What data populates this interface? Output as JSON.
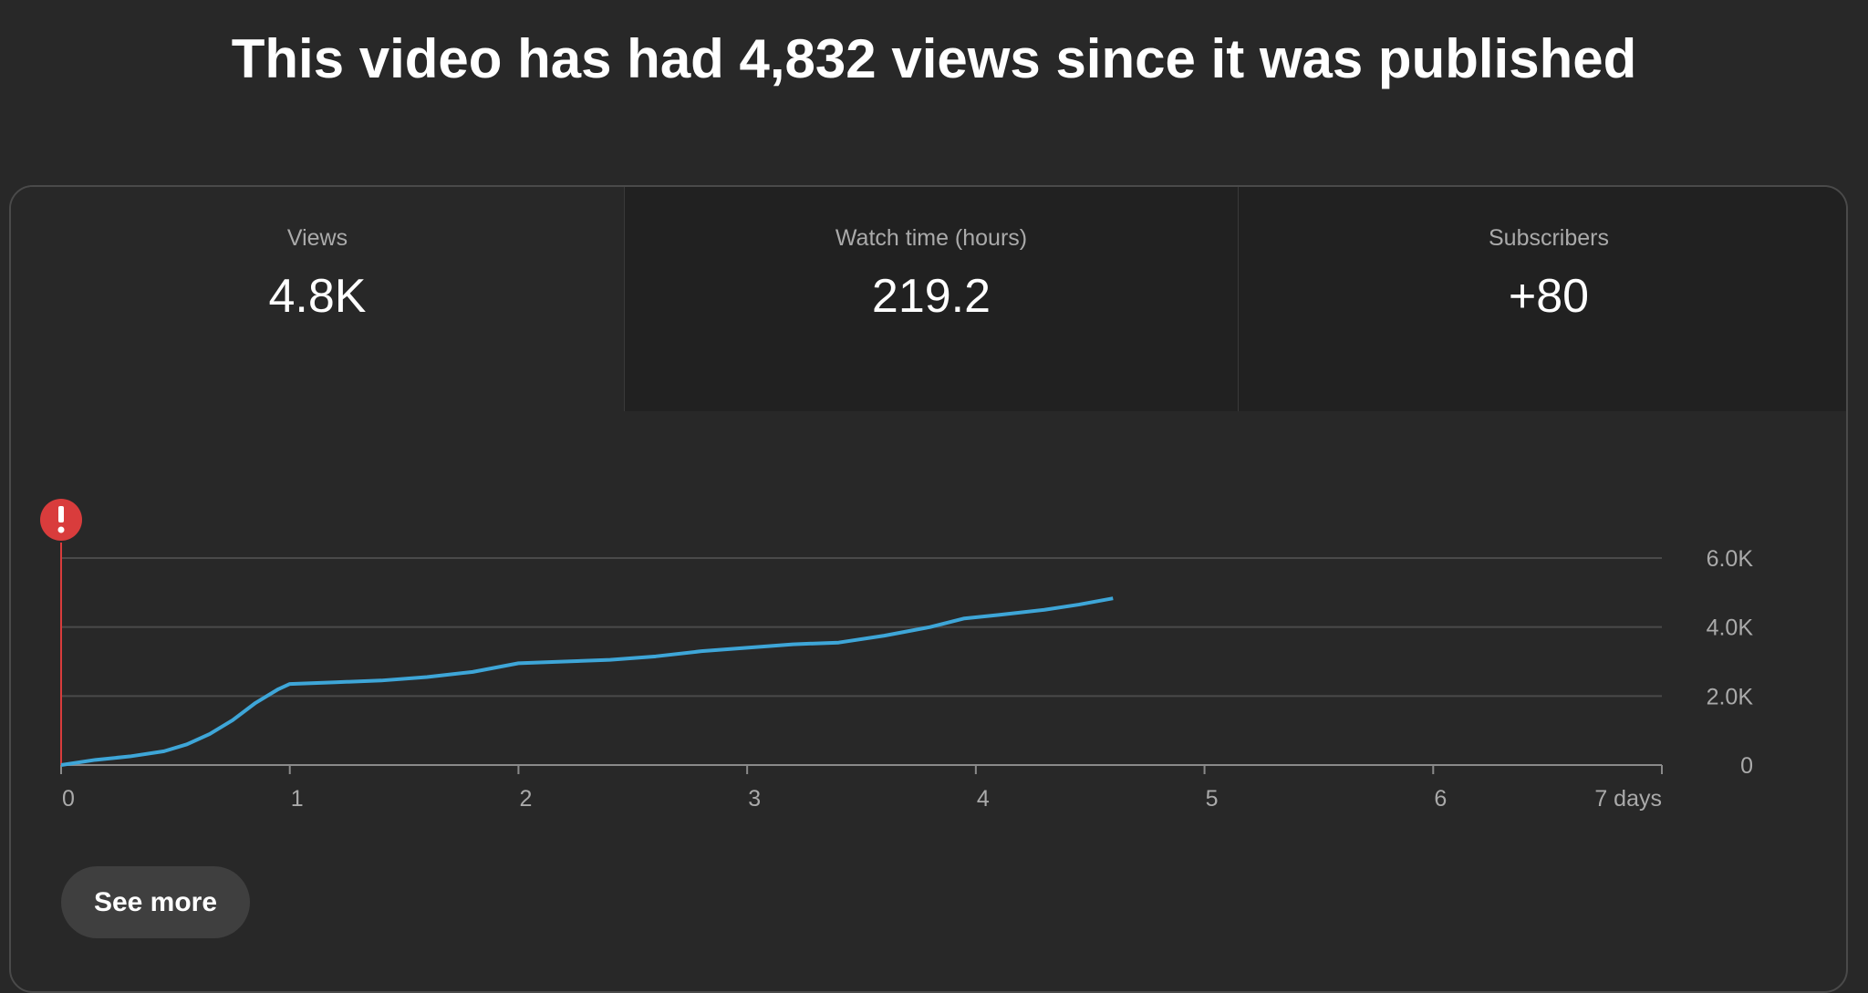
{
  "header": {
    "title": "This video has had 4,832 views since it was published"
  },
  "stats": [
    {
      "label": "Views",
      "value": "4.8K"
    },
    {
      "label": "Watch time (hours)",
      "value": "219.2"
    },
    {
      "label": "Subscribers",
      "value": "+80"
    }
  ],
  "chart_data": {
    "type": "line",
    "series": [
      {
        "color": "#3ea6d8",
        "x": [
          0,
          0.15,
          0.3,
          0.45,
          0.55,
          0.65,
          0.75,
          0.85,
          0.95,
          1.0,
          1.2,
          1.4,
          1.6,
          1.8,
          2.0,
          2.2,
          2.4,
          2.6,
          2.8,
          3.0,
          3.2,
          3.4,
          3.6,
          3.8,
          3.95,
          4.1,
          4.3,
          4.45,
          4.6
        ],
        "values": [
          0,
          150,
          250,
          400,
          600,
          900,
          1300,
          1800,
          2200,
          2350,
          2400,
          2450,
          2550,
          2700,
          2950,
          3000,
          3050,
          3150,
          3300,
          3400,
          3500,
          3550,
          3750,
          4000,
          4250,
          4350,
          4500,
          4650,
          4832
        ]
      }
    ],
    "xlim": [
      0,
      7
    ],
    "xticks": [
      0,
      1,
      2,
      3,
      4,
      5,
      6,
      {
        "value": 7,
        "label": "7 days"
      }
    ],
    "ylim": [
      0,
      6000
    ],
    "yticks": [
      0,
      {
        "value": 2000,
        "label": "2.0K"
      },
      {
        "value": 4000,
        "label": "4.0K"
      },
      {
        "value": 6000,
        "label": "6.0K"
      }
    ],
    "grid": true
  },
  "button": {
    "label": "See more"
  }
}
